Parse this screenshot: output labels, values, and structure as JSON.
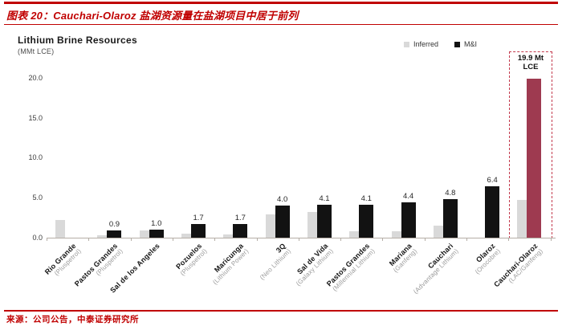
{
  "header": {
    "title": "图表 20：Cauchari-Olaroz 盐湖资源量在盐湖项目中居于前列"
  },
  "footer": {
    "source": "来源：公司公告，中泰证券研究所"
  },
  "chart_data": {
    "type": "bar",
    "title": "Lithium Brine Resources",
    "unit_label": "(MMt LCE)",
    "xlabel": "",
    "ylabel": "",
    "ylim": [
      0,
      20
    ],
    "ytick_labels": [
      "0.0",
      "5.0",
      "10.0",
      "15.0",
      "20.0"
    ],
    "grid": false,
    "legend_position": "top-right",
    "legend": [
      {
        "label": "Inferred",
        "color": "#d9d9d9"
      },
      {
        "label": "M&I",
        "color": "#121212"
      }
    ],
    "categories": [
      "Rio Grande",
      "Pastos Grandes",
      "Sal de los Angeles",
      "Pozuelos",
      "Maricunga",
      "3Q",
      "Sal de Vida",
      "Pastos Grandes",
      "Mariana",
      "Cauchari",
      "Olaroz",
      "Cauchari-Olaroz"
    ],
    "owners": [
      "(Pluspetrol)",
      "(Pluspetrol)",
      "",
      "(Pluspetrol)",
      "(Lithium Power)",
      "(Neo Lithium)",
      "(Galaxy Lithium)",
      "(Millennial Lithium)",
      "(Ganfeng)",
      "(Advantage Lithium)",
      "(Orocobre)",
      "(LAC/Ganfeng)"
    ],
    "series": [
      {
        "name": "Inferred",
        "values": [
          2.2,
          0.3,
          0.9,
          0.5,
          0.4,
          2.9,
          3.2,
          0.8,
          0.8,
          1.5,
          null,
          4.7
        ]
      },
      {
        "name": "M&I",
        "values": [
          null,
          0.9,
          1.0,
          1.7,
          1.7,
          4.0,
          4.1,
          4.1,
          4.4,
          4.8,
          6.4,
          19.9
        ]
      }
    ],
    "bar_labels": [
      null,
      "0.9",
      "1.0",
      "1.7",
      "1.7",
      "4.0",
      "4.1",
      "4.1",
      "4.4",
      "4.8",
      "6.4",
      null
    ],
    "highlight_index": 11,
    "annotation": {
      "text_lines": [
        "19.9 Mt",
        "LCE"
      ]
    },
    "colors": {
      "inferred_bar": "#d9d9d9",
      "mi_bar": "#121212",
      "highlight_bar": "#9e3a50",
      "highlight_box": "#c43b4e",
      "accent_red": "#c00000",
      "axis": "#b5aea6"
    }
  }
}
